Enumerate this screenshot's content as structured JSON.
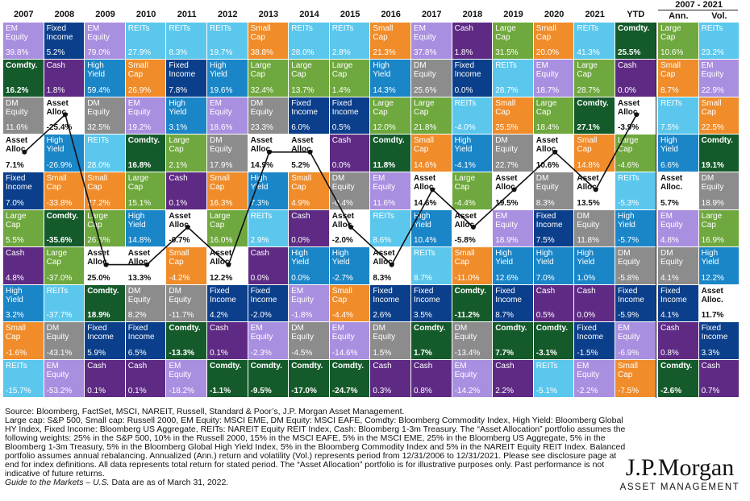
{
  "chart_data": {
    "type": "table",
    "columns": [
      "2007",
      "2008",
      "2009",
      "2010",
      "2011",
      "2012",
      "2013",
      "2014",
      "2015",
      "2016",
      "2017",
      "2018",
      "2019",
      "2020",
      "2021",
      "YTD"
    ],
    "annualized_header": "2007 - 2021",
    "annualized_columns": [
      "Ann.",
      "Vol."
    ],
    "rows": [
      [
        {
          "asset": "EM Equity",
          "value": "39.8%"
        },
        {
          "asset": "Fixed Income",
          "value": "5.2%"
        },
        {
          "asset": "EM Equity",
          "value": "79.0%"
        },
        {
          "asset": "REITs",
          "value": "27.9%"
        },
        {
          "asset": "REITs",
          "value": "8.3%"
        },
        {
          "asset": "REITs",
          "value": "19.7%"
        },
        {
          "asset": "Small Cap",
          "value": "38.8%"
        },
        {
          "asset": "REITs",
          "value": "28.0%"
        },
        {
          "asset": "REITs",
          "value": "2.8%"
        },
        {
          "asset": "Small Cap",
          "value": "21.3%"
        },
        {
          "asset": "EM Equity",
          "value": "37.8%"
        },
        {
          "asset": "Cash",
          "value": "1.8%"
        },
        {
          "asset": "Large Cap",
          "value": "31.5%"
        },
        {
          "asset": "Small Cap",
          "value": "20.0%"
        },
        {
          "asset": "REITs",
          "value": "41.3%"
        },
        {
          "asset": "Comdty.",
          "value": "25.5%"
        },
        {
          "asset": "Large Cap",
          "value": "10.6%"
        },
        {
          "asset": "REITs",
          "value": "23.2%"
        }
      ],
      [
        {
          "asset": "Comdty.",
          "value": "16.2%"
        },
        {
          "asset": "Cash",
          "value": "1.8%"
        },
        {
          "asset": "High Yield",
          "value": "59.4%"
        },
        {
          "asset": "Small Cap",
          "value": "26.9%"
        },
        {
          "asset": "Fixed Income",
          "value": "7.8%"
        },
        {
          "asset": "High Yield",
          "value": "19.6%"
        },
        {
          "asset": "Large Cap",
          "value": "32.4%"
        },
        {
          "asset": "Large Cap",
          "value": "13.7%"
        },
        {
          "asset": "Large Cap",
          "value": "1.4%"
        },
        {
          "asset": "High Yield",
          "value": "14.3%"
        },
        {
          "asset": "DM Equity",
          "value": "25.6%"
        },
        {
          "asset": "Fixed Income",
          "value": "0.0%"
        },
        {
          "asset": "REITs",
          "value": "28.7%"
        },
        {
          "asset": "EM Equity",
          "value": "18.7%"
        },
        {
          "asset": "Large Cap",
          "value": "28.7%"
        },
        {
          "asset": "Cash",
          "value": "0.0%"
        },
        {
          "asset": "Small Cap",
          "value": "8.7%"
        },
        {
          "asset": "EM Equity",
          "value": "22.9%"
        }
      ],
      [
        {
          "asset": "DM Equity",
          "value": "11.6%"
        },
        {
          "asset": "Asset Alloc.",
          "value": "-25.4%"
        },
        {
          "asset": "DM Equity",
          "value": "32.5%"
        },
        {
          "asset": "EM Equity",
          "value": "19.2%"
        },
        {
          "asset": "High Yield",
          "value": "3.1%"
        },
        {
          "asset": "EM Equity",
          "value": "18.6%"
        },
        {
          "asset": "DM Equity",
          "value": "23.3%"
        },
        {
          "asset": "Fixed Income",
          "value": "6.0%"
        },
        {
          "asset": "Fixed Income",
          "value": "0.5%"
        },
        {
          "asset": "Large Cap",
          "value": "12.0%"
        },
        {
          "asset": "Large Cap",
          "value": "21.8%"
        },
        {
          "asset": "REITs",
          "value": "-4.0%"
        },
        {
          "asset": "Small Cap",
          "value": "25.5%"
        },
        {
          "asset": "Large Cap",
          "value": "18.4%"
        },
        {
          "asset": "Comdty.",
          "value": "27.1%"
        },
        {
          "asset": "Asset Alloc.",
          "value": "-3.9%"
        },
        {
          "asset": "REITs",
          "value": "7.5%"
        },
        {
          "asset": "Small Cap",
          "value": "22.5%"
        }
      ],
      [
        {
          "asset": "Asset Alloc.",
          "value": "7.1%"
        },
        {
          "asset": "High Yield",
          "value": "-26.9%"
        },
        {
          "asset": "REITs",
          "value": "28.0%"
        },
        {
          "asset": "Comdty.",
          "value": "16.8%"
        },
        {
          "asset": "Large Cap",
          "value": "2.1%"
        },
        {
          "asset": "DM Equity",
          "value": "17.9%"
        },
        {
          "asset": "Asset Alloc.",
          "value": "14.9%"
        },
        {
          "asset": "Asset Alloc.",
          "value": "5.2%"
        },
        {
          "asset": "Cash",
          "value": "0.0%"
        },
        {
          "asset": "Comdty.",
          "value": "11.8%"
        },
        {
          "asset": "Small Cap",
          "value": "14.6%"
        },
        {
          "asset": "High Yield",
          "value": "-4.1%"
        },
        {
          "asset": "DM Equity",
          "value": "22.7%"
        },
        {
          "asset": "Asset Alloc.",
          "value": "10.6%"
        },
        {
          "asset": "Small Cap",
          "value": "14.8%"
        },
        {
          "asset": "Large Cap",
          "value": "-4.6%"
        },
        {
          "asset": "High Yield",
          "value": "6.6%"
        },
        {
          "asset": "Comdty.",
          "value": "19.1%"
        }
      ],
      [
        {
          "asset": "Fixed Income",
          "value": "7.0%"
        },
        {
          "asset": "Small Cap",
          "value": "-33.8%"
        },
        {
          "asset": "Small Cap",
          "value": "27.2%"
        },
        {
          "asset": "Large Cap",
          "value": "15.1%"
        },
        {
          "asset": "Cash",
          "value": "0.1%"
        },
        {
          "asset": "Small Cap",
          "value": "16.3%"
        },
        {
          "asset": "High Yield",
          "value": "7.3%"
        },
        {
          "asset": "Small Cap",
          "value": "4.9%"
        },
        {
          "asset": "DM Equity",
          "value": "-0.4%"
        },
        {
          "asset": "EM Equity",
          "value": "11.6%"
        },
        {
          "asset": "Asset Alloc.",
          "value": "14.6%"
        },
        {
          "asset": "Large Cap",
          "value": "-4.4%"
        },
        {
          "asset": "Asset Alloc.",
          "value": "19.5%"
        },
        {
          "asset": "DM Equity",
          "value": "8.3%"
        },
        {
          "asset": "Asset Alloc.",
          "value": "13.5%"
        },
        {
          "asset": "REITs",
          "value": "-5.3%"
        },
        {
          "asset": "Asset Alloc.",
          "value": "5.7%"
        },
        {
          "asset": "DM Equity",
          "value": "18.9%"
        }
      ],
      [
        {
          "asset": "Large Cap",
          "value": "5.5%"
        },
        {
          "asset": "Comdty.",
          "value": "-35.6%"
        },
        {
          "asset": "Large Cap",
          "value": "26.5%"
        },
        {
          "asset": "High Yield",
          "value": "14.8%"
        },
        {
          "asset": "Asset Alloc.",
          "value": "-0.7%"
        },
        {
          "asset": "Large Cap",
          "value": "16.0%"
        },
        {
          "asset": "REITs",
          "value": "2.9%"
        },
        {
          "asset": "Cash",
          "value": "0.0%"
        },
        {
          "asset": "Asset Alloc.",
          "value": "-2.0%"
        },
        {
          "asset": "REITs",
          "value": "8.6%"
        },
        {
          "asset": "High Yield",
          "value": "10.4%"
        },
        {
          "asset": "Asset Alloc.",
          "value": "-5.8%"
        },
        {
          "asset": "EM Equity",
          "value": "18.9%"
        },
        {
          "asset": "Fixed Income",
          "value": "7.5%"
        },
        {
          "asset": "DM Equity",
          "value": "11.8%"
        },
        {
          "asset": "High Yield",
          "value": "-5.7%"
        },
        {
          "asset": "EM Equity",
          "value": "4.8%"
        },
        {
          "asset": "Large Cap",
          "value": "16.9%"
        }
      ],
      [
        {
          "asset": "Cash",
          "value": "4.8%"
        },
        {
          "asset": "Large Cap",
          "value": "-37.0%"
        },
        {
          "asset": "Asset Alloc.",
          "value": "25.0%"
        },
        {
          "asset": "Asset Alloc.",
          "value": "13.3%"
        },
        {
          "asset": "Small Cap",
          "value": "-4.2%"
        },
        {
          "asset": "Asset Alloc.",
          "value": "12.2%"
        },
        {
          "asset": "Cash",
          "value": "0.0%"
        },
        {
          "asset": "High Yield",
          "value": "0.0%"
        },
        {
          "asset": "High Yield",
          "value": "-2.7%"
        },
        {
          "asset": "Asset Alloc.",
          "value": "8.3%"
        },
        {
          "asset": "REITs",
          "value": "8.7%"
        },
        {
          "asset": "Small Cap",
          "value": "-11.0%"
        },
        {
          "asset": "High Yield",
          "value": "12.6%"
        },
        {
          "asset": "High Yield",
          "value": "7.0%"
        },
        {
          "asset": "High Yield",
          "value": "1.0%"
        },
        {
          "asset": "DM Equity",
          "value": "-5.8%"
        },
        {
          "asset": "DM Equity",
          "value": "4.1%"
        },
        {
          "asset": "High Yield",
          "value": "12.2%"
        }
      ],
      [
        {
          "asset": "High Yield",
          "value": "3.2%"
        },
        {
          "asset": "REITs",
          "value": "-37.7%"
        },
        {
          "asset": "Comdty.",
          "value": "18.9%"
        },
        {
          "asset": "DM Equity",
          "value": "8.2%"
        },
        {
          "asset": "DM Equity",
          "value": "-11.7%"
        },
        {
          "asset": "Fixed Income",
          "value": "4.2%"
        },
        {
          "asset": "Fixed Income",
          "value": "-2.0%"
        },
        {
          "asset": "EM Equity",
          "value": "-1.8%"
        },
        {
          "asset": "Small Cap",
          "value": "-4.4%"
        },
        {
          "asset": "Fixed Income",
          "value": "2.6%"
        },
        {
          "asset": "Fixed Income",
          "value": "3.5%"
        },
        {
          "asset": "Comdty.",
          "value": "-11.2%"
        },
        {
          "asset": "Fixed Income",
          "value": "8.7%"
        },
        {
          "asset": "Cash",
          "value": "0.5%"
        },
        {
          "asset": "Cash",
          "value": "0.0%"
        },
        {
          "asset": "Fixed Income",
          "value": "-5.9%"
        },
        {
          "asset": "Fixed Income",
          "value": "4.1%"
        },
        {
          "asset": "Asset Alloc.",
          "value": "11.7%"
        }
      ],
      [
        {
          "asset": "Small Cap",
          "value": "-1.6%"
        },
        {
          "asset": "DM Equity",
          "value": "-43.1%"
        },
        {
          "asset": "Fixed Income",
          "value": "5.9%"
        },
        {
          "asset": "Fixed Income",
          "value": "6.5%"
        },
        {
          "asset": "Comdty.",
          "value": "-13.3%"
        },
        {
          "asset": "Cash",
          "value": "0.1%"
        },
        {
          "asset": "EM Equity",
          "value": "-2.3%"
        },
        {
          "asset": "DM Equity",
          "value": "-4.5%"
        },
        {
          "asset": "EM Equity",
          "value": "-14.6%"
        },
        {
          "asset": "DM Equity",
          "value": "1.5%"
        },
        {
          "asset": "Comdty.",
          "value": "1.7%"
        },
        {
          "asset": "DM Equity",
          "value": "-13.4%"
        },
        {
          "asset": "Comdty.",
          "value": "7.7%"
        },
        {
          "asset": "Comdty.",
          "value": "-3.1%"
        },
        {
          "asset": "Fixed Income",
          "value": "-1.5%"
        },
        {
          "asset": "EM Equity",
          "value": "-6.9%"
        },
        {
          "asset": "Cash",
          "value": "0.8%"
        },
        {
          "asset": "Fixed Income",
          "value": "3.3%"
        }
      ],
      [
        {
          "asset": "REITs",
          "value": "-15.7%"
        },
        {
          "asset": "EM Equity",
          "value": "-53.2%"
        },
        {
          "asset": "Cash",
          "value": "0.1%"
        },
        {
          "asset": "Cash",
          "value": "0.1%"
        },
        {
          "asset": "EM Equity",
          "value": "-18.2%"
        },
        {
          "asset": "Comdty.",
          "value": "-1.1%"
        },
        {
          "asset": "Comdty.",
          "value": "-9.5%"
        },
        {
          "asset": "Comdty.",
          "value": "-17.0%"
        },
        {
          "asset": "Comdty.",
          "value": "-24.7%"
        },
        {
          "asset": "Cash",
          "value": "0.3%"
        },
        {
          "asset": "Cash",
          "value": "0.8%"
        },
        {
          "asset": "EM Equity",
          "value": "-14.2%"
        },
        {
          "asset": "Cash",
          "value": "2.2%"
        },
        {
          "asset": "REITs",
          "value": "-5.1%"
        },
        {
          "asset": "EM Equity",
          "value": "-2.2%"
        },
        {
          "asset": "Small Cap",
          "value": "-7.5%"
        },
        {
          "asset": "Comdty.",
          "value": "-2.6%"
        },
        {
          "asset": "Cash",
          "value": "0.7%"
        }
      ]
    ],
    "asset_colors": {
      "EM Equity": "#a98fe0",
      "Fixed Income": "#0b3f8b",
      "REITs": "#5bc7ed",
      "Small Cap": "#f08c2a",
      "Cash": "#5e2a84",
      "Large Cap": "#6fa83e",
      "Comdty.": "#145a2a",
      "High Yield": "#1a86c8",
      "DM Equity": "#8c8c8c",
      "Asset Alloc.": "#ffffff"
    }
  },
  "source": {
    "line1": "Source: Bloomberg, FactSet, MSCI, NAREIT, Russell, Standard & Poor’s, J.P. Morgan Asset Management.",
    "body": "Large cap: S&P 500, Small cap: Russell 2000, EM Equity: MSCI EME, DM Equity: MSCI EAFE, Comdty: Bloomberg Commodity Index, High Yield: Bloomberg Global HY Index, Fixed Income: Bloomberg US Aggregate, REITs: NAREIT Equity REIT Index, Cash: Bloomberg 1-3m Treasury. The “Asset Allocation” portfolio assumes the following weights: 25% in the S&P 500, 10% in the Russell 2000, 15% in the MSCI EAFE, 5% in the MSCI EME, 25% in the Bloomberg US Aggregate, 5% in the Bloomberg 1-3m Treasury, 5% in the Bloomberg Global High Yield Index, 5% in the Bloomberg Commodity Index and 5% in the NAREIT Equity REIT Index. Balanced portfolio assumes annual rebalancing. Annualized (Ann.) return and volatility (Vol.) represents period from 12/31/2006 to 12/31/2021. Please see disclosure page at end for index definitions. All data represents total return for stated period. The “Asset Allocation” portfolio is for illustrative purposes only. Past performance is not indicative of future returns.",
    "guide": "Guide to the Markets – U.S.",
    "guide_tail": " Data are as of March 31, 2022."
  },
  "logo": {
    "brand": "J.P.Morgan",
    "sub": "ASSET MANAGEMENT"
  }
}
